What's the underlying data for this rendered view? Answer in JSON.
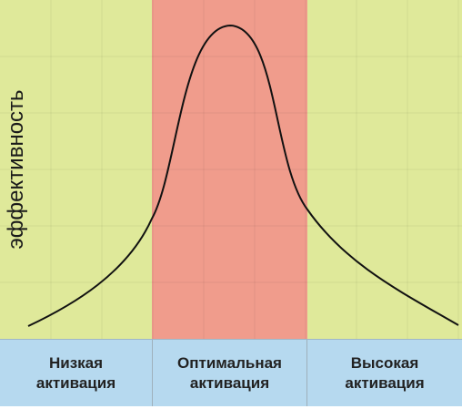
{
  "diagram": {
    "ylabel": "эффективность",
    "categories": [
      {
        "id": "low",
        "label": "Низкая\nактивация"
      },
      {
        "id": "opt",
        "label": "Оптимальная\nактивация"
      },
      {
        "id": "high",
        "label": "Высокая\nактивация"
      }
    ],
    "colors": {
      "low_zone": "#dfe99a",
      "optimal_zone": "#f09c8c",
      "high_zone": "#dfe99a",
      "footer": "#b6d9ef",
      "curve": "#111111"
    }
  }
}
